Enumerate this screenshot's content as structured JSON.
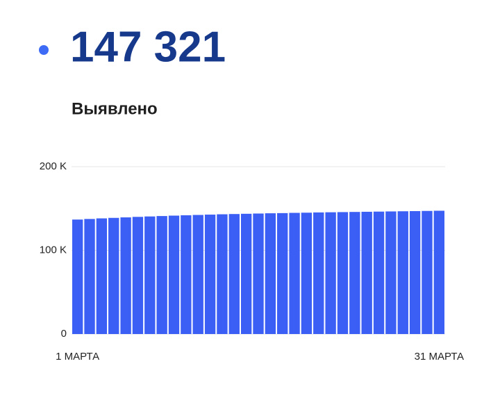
{
  "headline": "147 321",
  "chart_data": {
    "type": "bar",
    "title": "Выявлено",
    "categories": [
      "1 МАРТА",
      null,
      null,
      null,
      null,
      null,
      null,
      null,
      null,
      null,
      null,
      null,
      null,
      null,
      null,
      null,
      null,
      null,
      null,
      null,
      null,
      null,
      null,
      null,
      null,
      null,
      null,
      null,
      null,
      null,
      "31 МАРТА"
    ],
    "values": [
      136800,
      137500,
      138200,
      138800,
      139400,
      140000,
      140500,
      141000,
      141500,
      141900,
      142300,
      142700,
      143100,
      143400,
      143700,
      144000,
      144300,
      144500,
      144800,
      145000,
      145300,
      145500,
      145700,
      145900,
      146100,
      146300,
      146500,
      146700,
      146900,
      147100,
      147321
    ],
    "color": "#3b5ef5",
    "ylim": [
      0,
      200000
    ],
    "yticks": [
      0,
      {
        "value": 100000,
        "label": "100 K"
      },
      {
        "value": 200000,
        "label": "200 K"
      }
    ],
    "grid": true
  }
}
